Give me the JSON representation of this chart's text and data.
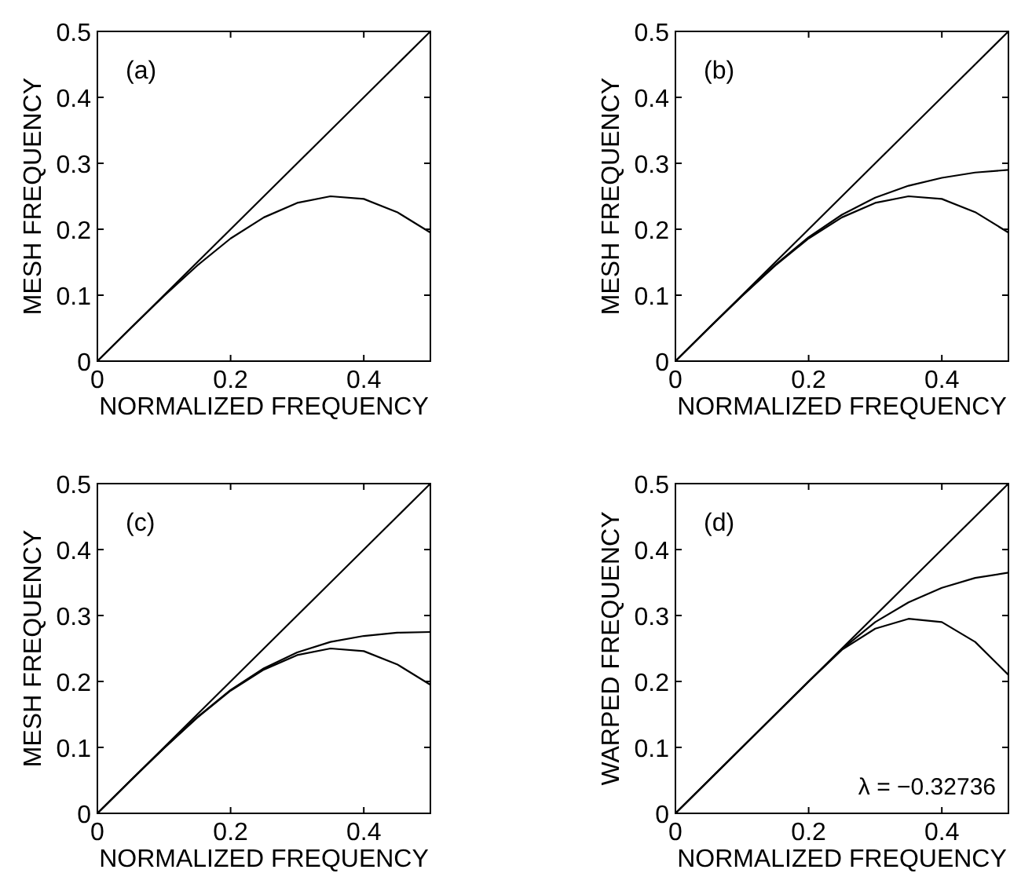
{
  "chart_data": [
    {
      "type": "line",
      "xlabel": "NORMALIZED FREQUENCY",
      "ylabel": "MESH FREQUENCY",
      "xlim": [
        0,
        0.5
      ],
      "ylim": [
        0,
        0.5
      ],
      "xticks": [
        0,
        0.2,
        0.4
      ],
      "yticks": [
        0,
        0.1,
        0.2,
        0.3,
        0.4,
        0.5
      ],
      "annotations": [
        "(a)"
      ],
      "x": [
        0,
        0.05,
        0.1,
        0.15,
        0.2,
        0.25,
        0.3,
        0.35,
        0.4,
        0.45,
        0.5
      ],
      "series": [
        {
          "color": "#000000",
          "values": [
            0,
            0.05,
            0.1,
            0.15,
            0.2,
            0.25,
            0.3,
            0.35,
            0.4,
            0.45,
            0.5
          ]
        },
        {
          "color": "#000000",
          "values": [
            0,
            0.05,
            0.099,
            0.145,
            0.186,
            0.218,
            0.24,
            0.25,
            0.246,
            0.226,
            0.195
          ]
        }
      ]
    },
    {
      "type": "line",
      "xlabel": "NORMALIZED FREQUENCY",
      "ylabel": "MESH FREQUENCY",
      "xlim": [
        0,
        0.5
      ],
      "ylim": [
        0,
        0.5
      ],
      "xticks": [
        0,
        0.2,
        0.4
      ],
      "yticks": [
        0,
        0.1,
        0.2,
        0.3,
        0.4,
        0.5
      ],
      "annotations": [
        "(b)"
      ],
      "x": [
        0,
        0.05,
        0.1,
        0.15,
        0.2,
        0.25,
        0.3,
        0.35,
        0.4,
        0.45,
        0.5
      ],
      "series": [
        {
          "color": "#000000",
          "values": [
            0,
            0.05,
            0.1,
            0.15,
            0.2,
            0.25,
            0.3,
            0.35,
            0.4,
            0.45,
            0.5
          ]
        },
        {
          "color": "#000000",
          "values": [
            0,
            0.05,
            0.099,
            0.146,
            0.188,
            0.222,
            0.248,
            0.266,
            0.278,
            0.286,
            0.29
          ]
        },
        {
          "color": "#000000",
          "values": [
            0,
            0.05,
            0.099,
            0.145,
            0.186,
            0.218,
            0.24,
            0.25,
            0.246,
            0.226,
            0.195
          ]
        }
      ]
    },
    {
      "type": "line",
      "xlabel": "NORMALIZED FREQUENCY",
      "ylabel": "MESH FREQUENCY",
      "xlim": [
        0,
        0.5
      ],
      "ylim": [
        0,
        0.5
      ],
      "xticks": [
        0,
        0.2,
        0.4
      ],
      "yticks": [
        0,
        0.1,
        0.2,
        0.3,
        0.4,
        0.5
      ],
      "annotations": [
        "(c)"
      ],
      "x": [
        0,
        0.05,
        0.1,
        0.15,
        0.2,
        0.25,
        0.3,
        0.35,
        0.4,
        0.45,
        0.5
      ],
      "series": [
        {
          "color": "#000000",
          "values": [
            0,
            0.05,
            0.1,
            0.15,
            0.2,
            0.25,
            0.3,
            0.35,
            0.4,
            0.45,
            0.5
          ]
        },
        {
          "color": "#000000",
          "values": [
            0,
            0.05,
            0.099,
            0.146,
            0.187,
            0.22,
            0.244,
            0.26,
            0.269,
            0.274,
            0.275
          ]
        },
        {
          "color": "#000000",
          "values": [
            0,
            0.05,
            0.099,
            0.145,
            0.186,
            0.218,
            0.24,
            0.25,
            0.246,
            0.226,
            0.195
          ]
        }
      ]
    },
    {
      "type": "line",
      "xlabel": "NORMALIZED FREQUENCY",
      "ylabel": "WARPED FREQUENCY",
      "xlim": [
        0,
        0.5
      ],
      "ylim": [
        0,
        0.5
      ],
      "xticks": [
        0,
        0.2,
        0.4
      ],
      "yticks": [
        0,
        0.1,
        0.2,
        0.3,
        0.4,
        0.5
      ],
      "annotations": [
        "(d)",
        "λ = −0.32736"
      ],
      "x": [
        0,
        0.05,
        0.1,
        0.15,
        0.2,
        0.25,
        0.3,
        0.35,
        0.4,
        0.45,
        0.5
      ],
      "series": [
        {
          "color": "#000000",
          "values": [
            0,
            0.05,
            0.1,
            0.15,
            0.2,
            0.25,
            0.3,
            0.35,
            0.4,
            0.45,
            0.5
          ]
        },
        {
          "color": "#000000",
          "values": [
            0,
            0.05,
            0.1,
            0.15,
            0.2,
            0.249,
            0.29,
            0.32,
            0.342,
            0.357,
            0.365
          ]
        },
        {
          "color": "#000000",
          "values": [
            0,
            0.05,
            0.1,
            0.15,
            0.2,
            0.248,
            0.28,
            0.295,
            0.29,
            0.26,
            0.21
          ]
        }
      ]
    }
  ]
}
